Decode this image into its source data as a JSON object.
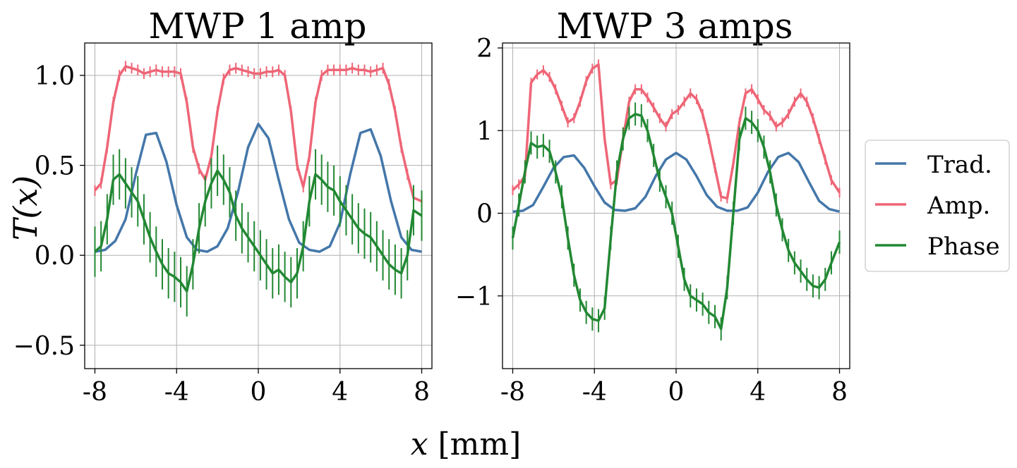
{
  "figure": {
    "ylabel": "T(x)",
    "xlabel_var": "x",
    "xlabel_unit": " [mm]",
    "legend": [
      {
        "label": "Trad.",
        "color": "#4477aa"
      },
      {
        "label": "Amp.",
        "color": "#ee6677"
      },
      {
        "label": "Phase",
        "color": "#228833"
      }
    ]
  },
  "chart_data": [
    {
      "type": "line",
      "title": "MWP 1 amp",
      "xlim": [
        -8.5,
        8.5
      ],
      "ylim": [
        -0.63,
        1.18
      ],
      "xticks": [
        -8,
        -4,
        0,
        4,
        8
      ],
      "xtick_labels": [
        "-8",
        "-4",
        "0",
        "4",
        "8"
      ],
      "yticks": [
        1.0,
        0.5,
        0.0,
        -0.5
      ],
      "ytick_labels": [
        "1.0",
        "0.5",
        "0.0",
        "−0.5"
      ],
      "grid": true,
      "series": [
        {
          "name": "Trad.",
          "color": "#4477aa",
          "x": [
            -8,
            -7.5,
            -7,
            -6.5,
            -6,
            -5.5,
            -5,
            -4.5,
            -4,
            -3.5,
            -3,
            -2.5,
            -2,
            -1.5,
            -1,
            -0.5,
            0,
            0.5,
            1,
            1.5,
            2,
            2.5,
            3,
            3.5,
            4,
            4.5,
            5,
            5.5,
            6,
            6.5,
            7,
            7.5,
            8
          ],
          "y": [
            0.02,
            0.03,
            0.08,
            0.2,
            0.45,
            0.67,
            0.68,
            0.52,
            0.28,
            0.1,
            0.03,
            0.02,
            0.05,
            0.15,
            0.35,
            0.6,
            0.73,
            0.65,
            0.42,
            0.2,
            0.07,
            0.03,
            0.02,
            0.05,
            0.18,
            0.45,
            0.68,
            0.7,
            0.55,
            0.3,
            0.1,
            0.03,
            0.02
          ]
        },
        {
          "name": "Amp.",
          "color": "#ee6677",
          "errorbars": true,
          "err": 0.03,
          "x": [
            -8,
            -7.7,
            -7.4,
            -7.1,
            -6.8,
            -6.5,
            -6.2,
            -5.9,
            -5.6,
            -5.3,
            -5,
            -4.7,
            -4.4,
            -4.1,
            -3.8,
            -3.5,
            -3.2,
            -2.9,
            -2.6,
            -2.3,
            -2,
            -1.7,
            -1.4,
            -1.1,
            -0.8,
            -0.5,
            -0.2,
            0.1,
            0.4,
            0.7,
            1,
            1.3,
            1.6,
            1.9,
            2.2,
            2.5,
            2.8,
            3.1,
            3.4,
            3.7,
            4,
            4.3,
            4.6,
            4.9,
            5.2,
            5.5,
            5.8,
            6.1,
            6.4,
            6.7,
            7,
            7.3,
            7.6,
            8
          ],
          "y": [
            0.36,
            0.4,
            0.6,
            0.85,
            1.0,
            1.05,
            1.04,
            1.03,
            1.01,
            1.02,
            1.03,
            1.02,
            1.02,
            1.02,
            1.01,
            0.85,
            0.6,
            0.48,
            0.42,
            0.55,
            0.8,
            0.98,
            1.03,
            1.04,
            1.03,
            1.02,
            1.01,
            1.01,
            1.02,
            1.02,
            1.03,
            1.0,
            0.8,
            0.5,
            0.38,
            0.55,
            0.85,
            1.0,
            1.03,
            1.03,
            1.03,
            1.03,
            1.04,
            1.03,
            1.03,
            1.02,
            1.03,
            1.04,
            0.95,
            0.8,
            0.6,
            0.45,
            0.32,
            0.3
          ]
        },
        {
          "name": "Phase",
          "color": "#228833",
          "errorbars": true,
          "err": 0.14,
          "x": [
            -8,
            -7.7,
            -7.4,
            -7.1,
            -6.8,
            -6.5,
            -6.2,
            -5.9,
            -5.6,
            -5.3,
            -5,
            -4.7,
            -4.4,
            -4.1,
            -3.8,
            -3.5,
            -3.2,
            -2.9,
            -2.6,
            -2.3,
            -2,
            -1.7,
            -1.4,
            -1.1,
            -0.8,
            -0.5,
            -0.2,
            0.1,
            0.4,
            0.7,
            1,
            1.3,
            1.6,
            1.9,
            2.2,
            2.5,
            2.8,
            3.1,
            3.4,
            3.7,
            4,
            4.3,
            4.6,
            4.9,
            5.2,
            5.5,
            5.8,
            6.1,
            6.4,
            6.7,
            7,
            7.3,
            7.6,
            8
          ],
          "y": [
            0.02,
            0.05,
            0.2,
            0.42,
            0.45,
            0.4,
            0.35,
            0.3,
            0.2,
            0.1,
            0.02,
            -0.05,
            -0.1,
            -0.12,
            -0.15,
            -0.2,
            -0.05,
            0.15,
            0.3,
            0.4,
            0.47,
            0.42,
            0.35,
            0.22,
            0.15,
            0.1,
            0.05,
            0.0,
            -0.05,
            -0.1,
            -0.08,
            -0.12,
            -0.15,
            -0.1,
            0.05,
            0.3,
            0.45,
            0.42,
            0.38,
            0.36,
            0.3,
            0.25,
            0.2,
            0.15,
            0.12,
            0.1,
            0.05,
            0.0,
            -0.05,
            -0.08,
            -0.1,
            0.0,
            0.25,
            0.22
          ]
        }
      ]
    },
    {
      "type": "line",
      "title": "MWP 3 amps",
      "xlim": [
        -8.5,
        8.5
      ],
      "ylim": [
        -1.88,
        2.06
      ],
      "xticks": [
        -8,
        -4,
        0,
        4,
        8
      ],
      "xtick_labels": [
        "-8",
        "-4",
        "0",
        "4",
        "8"
      ],
      "yticks": [
        2,
        1,
        0,
        -1
      ],
      "ytick_labels": [
        "2",
        "1",
        "0",
        "−1"
      ],
      "grid": true,
      "series": [
        {
          "name": "Trad.",
          "color": "#4477aa",
          "x": [
            -8,
            -7.5,
            -7,
            -6.5,
            -6,
            -5.5,
            -5,
            -4.5,
            -4,
            -3.5,
            -3,
            -2.5,
            -2,
            -1.5,
            -1,
            -0.5,
            0,
            0.5,
            1,
            1.5,
            2,
            2.5,
            3,
            3.5,
            4,
            4.5,
            5,
            5.5,
            6,
            6.5,
            7,
            7.5,
            8
          ],
          "y": [
            0.02,
            0.03,
            0.1,
            0.32,
            0.55,
            0.68,
            0.7,
            0.55,
            0.33,
            0.13,
            0.04,
            0.03,
            0.06,
            0.2,
            0.45,
            0.65,
            0.73,
            0.65,
            0.45,
            0.22,
            0.08,
            0.03,
            0.03,
            0.07,
            0.25,
            0.5,
            0.68,
            0.73,
            0.62,
            0.38,
            0.15,
            0.05,
            0.02
          ]
        },
        {
          "name": "Amp.",
          "color": "#ee6677",
          "errorbars": true,
          "err": 0.06,
          "x": [
            -8,
            -7.7,
            -7.4,
            -7.1,
            -6.8,
            -6.5,
            -6.2,
            -5.9,
            -5.6,
            -5.3,
            -5,
            -4.7,
            -4.4,
            -4.1,
            -3.8,
            -3.5,
            -3.2,
            -2.9,
            -2.6,
            -2.3,
            -2,
            -1.7,
            -1.4,
            -1.1,
            -0.8,
            -0.5,
            -0.2,
            0.1,
            0.4,
            0.7,
            1,
            1.3,
            1.6,
            1.9,
            2.2,
            2.5,
            2.8,
            3.1,
            3.4,
            3.7,
            4,
            4.3,
            4.6,
            4.9,
            5.2,
            5.5,
            5.8,
            6.1,
            6.4,
            6.7,
            7,
            7.3,
            7.6,
            8
          ],
          "y": [
            0.28,
            0.35,
            0.45,
            1.58,
            1.68,
            1.73,
            1.65,
            1.5,
            1.3,
            1.1,
            1.15,
            1.35,
            1.6,
            1.75,
            1.8,
            0.9,
            0.35,
            0.4,
            0.9,
            1.35,
            1.5,
            1.5,
            1.4,
            1.28,
            1.15,
            1.05,
            1.2,
            1.25,
            1.35,
            1.45,
            1.38,
            1.2,
            0.9,
            0.55,
            0.2,
            0.18,
            0.6,
            1.1,
            1.45,
            1.5,
            1.38,
            1.25,
            1.18,
            1.05,
            1.1,
            1.2,
            1.35,
            1.45,
            1.35,
            1.15,
            0.9,
            0.65,
            0.4,
            0.25
          ]
        },
        {
          "name": "Phase",
          "color": "#228833",
          "errorbars": true,
          "err": 0.14,
          "x": [
            -8,
            -7.7,
            -7.4,
            -7.1,
            -6.8,
            -6.5,
            -6.2,
            -5.9,
            -5.6,
            -5.3,
            -5,
            -4.7,
            -4.4,
            -4.1,
            -3.8,
            -3.5,
            -3.2,
            -2.9,
            -2.6,
            -2.3,
            -2,
            -1.7,
            -1.4,
            -1.1,
            -0.8,
            -0.5,
            -0.2,
            0.1,
            0.4,
            0.7,
            1,
            1.3,
            1.6,
            1.9,
            2.2,
            2.5,
            2.8,
            3.1,
            3.4,
            3.7,
            4,
            4.3,
            4.6,
            4.9,
            5.2,
            5.5,
            5.8,
            6.1,
            6.4,
            6.7,
            7,
            7.3,
            7.6,
            8
          ],
          "y": [
            -0.3,
            0.1,
            0.5,
            0.85,
            0.8,
            0.82,
            0.75,
            0.5,
            0.2,
            -0.3,
            -0.75,
            -1.05,
            -1.2,
            -1.28,
            -1.3,
            -1.15,
            -0.3,
            0.5,
            0.9,
            1.15,
            1.2,
            1.18,
            1.0,
            0.7,
            0.4,
            0.2,
            0.0,
            -0.4,
            -0.8,
            -1.0,
            -1.05,
            -1.1,
            -1.2,
            -1.25,
            -1.4,
            -0.9,
            0.0,
            0.9,
            1.15,
            1.1,
            1.0,
            0.8,
            0.5,
            0.1,
            -0.2,
            -0.45,
            -0.6,
            -0.7,
            -0.8,
            -0.88,
            -0.9,
            -0.8,
            -0.6,
            -0.35
          ]
        }
      ]
    }
  ]
}
